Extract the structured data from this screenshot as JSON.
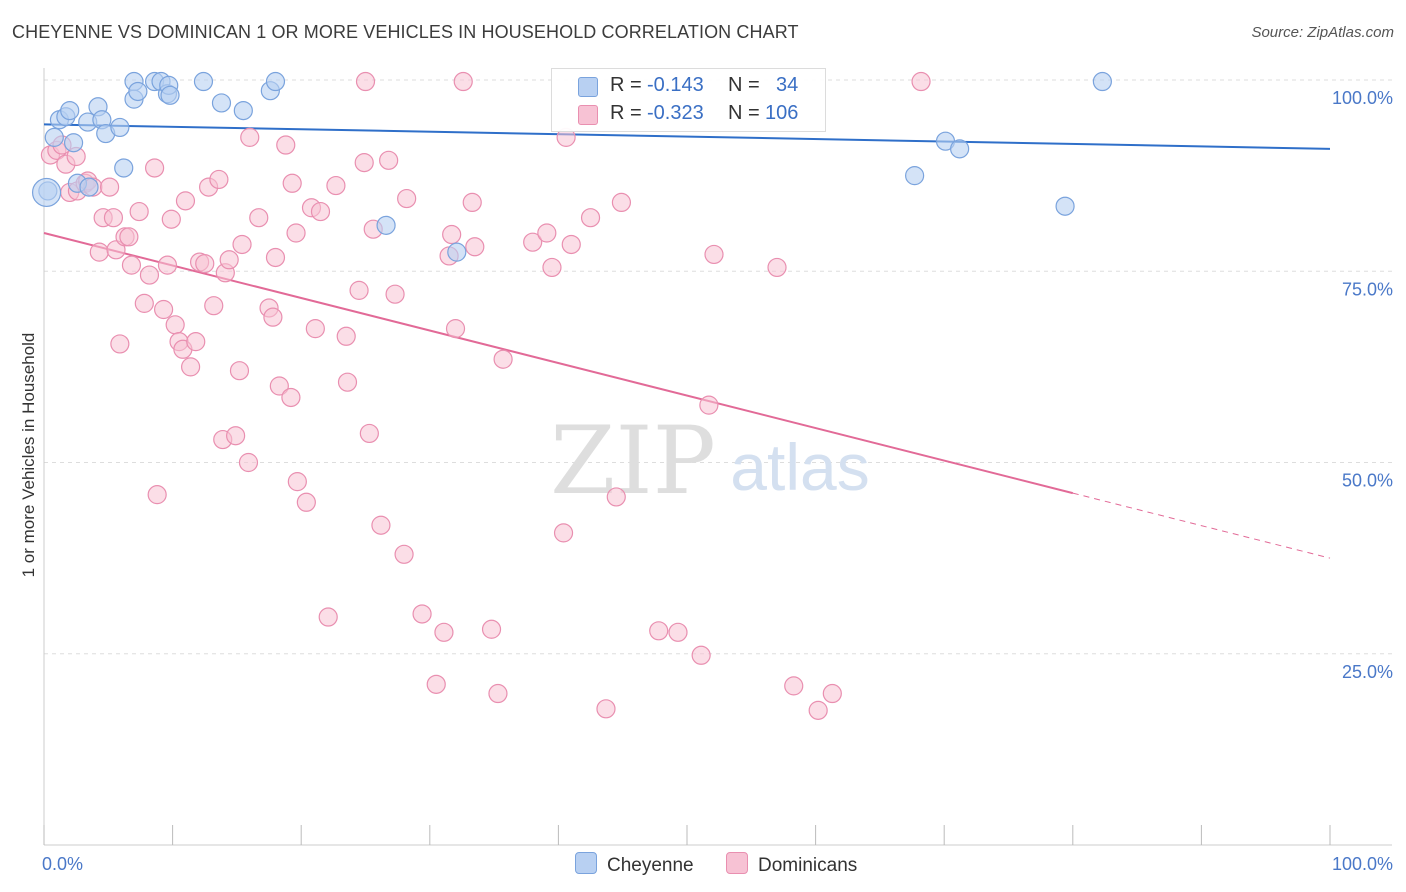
{
  "title": "CHEYENNE VS DOMINICAN 1 OR MORE VEHICLES IN HOUSEHOLD CORRELATION CHART",
  "source": "Source: ZipAtlas.com",
  "watermark": {
    "zip": "ZIP",
    "atlas": "atlas"
  },
  "legend": {
    "r_label": "R =",
    "n_label": "N =",
    "cheyenne": {
      "r": "-0.143",
      "n": "34"
    },
    "dominicans": {
      "r": "-0.323",
      "n": "106"
    }
  },
  "bottom_legend": {
    "cheyenne": "Cheyenne",
    "dominicans": "Dominicans"
  },
  "colors": {
    "cheyenne_fill": "#b8d0f2",
    "cheyenne_stroke": "#7aa3dd",
    "cheyenne_line": "#2f6fc9",
    "dominicans_fill": "#f7c2d4",
    "dominicans_stroke": "#e98fb0",
    "dominicans_line": "#e26a97",
    "tick_text": "#4a78c8",
    "grid": "#dddddd"
  },
  "chart_data": {
    "type": "scatter",
    "xlabel": "",
    "ylabel": "1 or more Vehicles in Household",
    "xlim": [
      0,
      100
    ],
    "ylim": [
      0,
      100
    ],
    "x_tick_labels": [
      {
        "value": 0,
        "label": "0.0%"
      },
      {
        "value": 100,
        "label": "100.0%"
      }
    ],
    "y_tick_labels": [
      {
        "value": 100,
        "label": "100.0%"
      },
      {
        "value": 75,
        "label": "75.0%"
      },
      {
        "value": 50,
        "label": "50.0%"
      },
      {
        "value": 25,
        "label": "25.0%"
      }
    ],
    "series": [
      {
        "name": "Cheyenne",
        "trend": {
          "x0": 0,
          "y0": 94.2,
          "x1": 100,
          "y1": 91.0
        },
        "points": [
          [
            0.3,
            85.5
          ],
          [
            0.8,
            92.5
          ],
          [
            1.2,
            94.8
          ],
          [
            1.7,
            95.2
          ],
          [
            2.0,
            96.0
          ],
          [
            2.3,
            91.8
          ],
          [
            2.6,
            86.5
          ],
          [
            3.4,
            94.5
          ],
          [
            3.5,
            86.0
          ],
          [
            4.2,
            96.5
          ],
          [
            4.5,
            94.8
          ],
          [
            4.8,
            93.0
          ],
          [
            5.9,
            93.8
          ],
          [
            6.2,
            88.5
          ],
          [
            7.0,
            99.8
          ],
          [
            7.0,
            97.5
          ],
          [
            7.3,
            98.5
          ],
          [
            8.6,
            99.8
          ],
          [
            9.1,
            99.8
          ],
          [
            9.6,
            98.2
          ],
          [
            9.7,
            99.3
          ],
          [
            9.8,
            98.0
          ],
          [
            12.4,
            99.8
          ],
          [
            13.8,
            97.0
          ],
          [
            15.5,
            96.0
          ],
          [
            17.6,
            98.6
          ],
          [
            18.0,
            99.8
          ],
          [
            26.6,
            81.0
          ],
          [
            32.1,
            77.5
          ],
          [
            67.7,
            87.5
          ],
          [
            70.1,
            92.0
          ],
          [
            71.2,
            91.0
          ],
          [
            79.4,
            83.5
          ],
          [
            82.3,
            99.8
          ]
        ],
        "big_points": [
          [
            0.2,
            85.3
          ]
        ]
      },
      {
        "name": "Dominicans",
        "trend": {
          "x0": 0,
          "y0": 80.0,
          "x1": 80.0,
          "y1": 46.0,
          "dash_x1": 100,
          "dash_y1": 37.5
        },
        "points": [
          [
            0.5,
            90.2
          ],
          [
            1.0,
            90.8
          ],
          [
            1.4,
            91.5
          ],
          [
            1.7,
            89.0
          ],
          [
            2.0,
            85.3
          ],
          [
            2.5,
            90.0
          ],
          [
            2.6,
            85.5
          ],
          [
            3.2,
            86.5
          ],
          [
            3.4,
            86.8
          ],
          [
            3.8,
            86.0
          ],
          [
            4.3,
            77.5
          ],
          [
            4.6,
            82.0
          ],
          [
            5.1,
            86.0
          ],
          [
            5.4,
            82.0
          ],
          [
            5.6,
            77.8
          ],
          [
            5.9,
            65.5
          ],
          [
            6.3,
            79.5
          ],
          [
            6.6,
            79.5
          ],
          [
            6.8,
            75.8
          ],
          [
            7.4,
            82.8
          ],
          [
            7.8,
            70.8
          ],
          [
            8.2,
            74.5
          ],
          [
            8.6,
            88.5
          ],
          [
            8.8,
            45.8
          ],
          [
            9.3,
            70.0
          ],
          [
            9.6,
            75.8
          ],
          [
            9.9,
            81.8
          ],
          [
            10.2,
            68.0
          ],
          [
            10.5,
            65.8
          ],
          [
            10.8,
            64.8
          ],
          [
            11.0,
            84.2
          ],
          [
            11.4,
            62.5
          ],
          [
            11.8,
            65.8
          ],
          [
            12.1,
            76.2
          ],
          [
            12.5,
            76.0
          ],
          [
            12.8,
            86.0
          ],
          [
            13.2,
            70.5
          ],
          [
            13.6,
            87.0
          ],
          [
            13.9,
            53.0
          ],
          [
            14.1,
            74.8
          ],
          [
            14.4,
            76.5
          ],
          [
            14.9,
            53.5
          ],
          [
            15.2,
            62.0
          ],
          [
            15.4,
            78.5
          ],
          [
            15.9,
            50.0
          ],
          [
            16.0,
            92.5
          ],
          [
            16.7,
            82.0
          ],
          [
            17.5,
            70.2
          ],
          [
            17.8,
            69.0
          ],
          [
            18.0,
            76.8
          ],
          [
            18.3,
            60.0
          ],
          [
            18.8,
            91.5
          ],
          [
            19.2,
            58.5
          ],
          [
            19.3,
            86.5
          ],
          [
            19.6,
            80.0
          ],
          [
            19.7,
            47.5
          ],
          [
            20.4,
            44.8
          ],
          [
            20.8,
            83.3
          ],
          [
            21.1,
            67.5
          ],
          [
            21.5,
            82.8
          ],
          [
            22.7,
            86.2
          ],
          [
            22.1,
            29.8
          ],
          [
            23.5,
            66.5
          ],
          [
            23.6,
            60.5
          ],
          [
            24.5,
            72.5
          ],
          [
            24.9,
            89.2
          ],
          [
            25.3,
            53.8
          ],
          [
            25.6,
            80.5
          ],
          [
            26.2,
            41.8
          ],
          [
            26.8,
            89.5
          ],
          [
            27.3,
            72.0
          ],
          [
            28.0,
            38.0
          ],
          [
            28.2,
            84.5
          ],
          [
            29.4,
            30.2
          ],
          [
            30.5,
            21.0
          ],
          [
            31.1,
            27.8
          ],
          [
            31.5,
            77.0
          ],
          [
            31.7,
            79.8
          ],
          [
            32.0,
            67.5
          ],
          [
            32.6,
            99.8
          ],
          [
            33.3,
            84.0
          ],
          [
            33.5,
            78.2
          ],
          [
            34.8,
            28.2
          ],
          [
            35.3,
            19.8
          ],
          [
            35.7,
            63.5
          ],
          [
            38.0,
            78.8
          ],
          [
            39.1,
            80.0
          ],
          [
            39.5,
            75.5
          ],
          [
            40.4,
            40.8
          ],
          [
            40.6,
            92.5
          ],
          [
            41.0,
            78.5
          ],
          [
            42.5,
            82.0
          ],
          [
            43.7,
            17.8
          ],
          [
            44.5,
            45.5
          ],
          [
            44.9,
            84.0
          ],
          [
            47.8,
            28.0
          ],
          [
            49.3,
            27.8
          ],
          [
            51.1,
            24.8
          ],
          [
            51.7,
            57.5
          ],
          [
            52.1,
            77.2
          ],
          [
            57.0,
            75.5
          ],
          [
            68.2,
            99.8
          ],
          [
            25.0,
            99.8
          ],
          [
            61.3,
            19.8
          ],
          [
            58.3,
            20.8
          ],
          [
            60.2,
            17.6
          ]
        ]
      }
    ]
  }
}
